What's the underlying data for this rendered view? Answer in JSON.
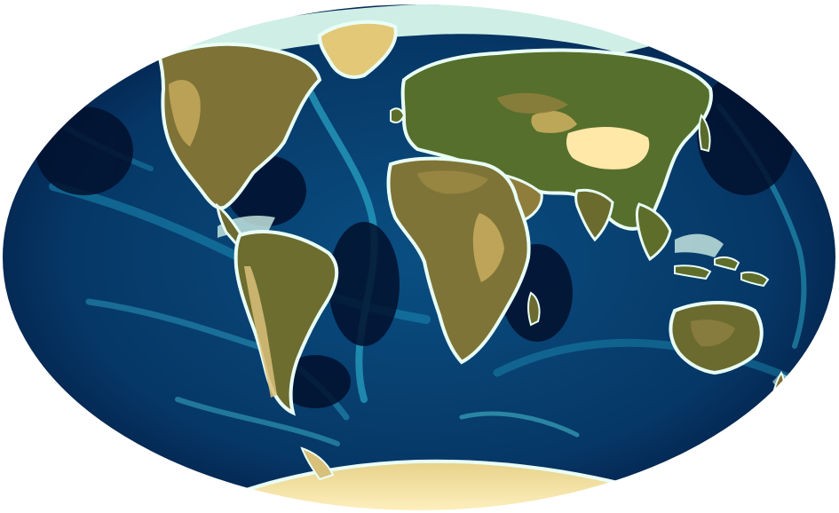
{
  "map": {
    "projection": "hammer-equal-area",
    "kind": "global-topography-bathymetry",
    "colormap": {
      "deep_ocean": "#03183f",
      "ocean": "#0a4f82",
      "shelf": "#1f8fb8",
      "shallow": "#66c3cf",
      "coast": "#d8f4ea",
      "lowland": "#4f6f2e",
      "upland": "#8a7a3a",
      "highland": "#c8ad5e",
      "peak": "#fff3cc"
    },
    "labels": []
  }
}
